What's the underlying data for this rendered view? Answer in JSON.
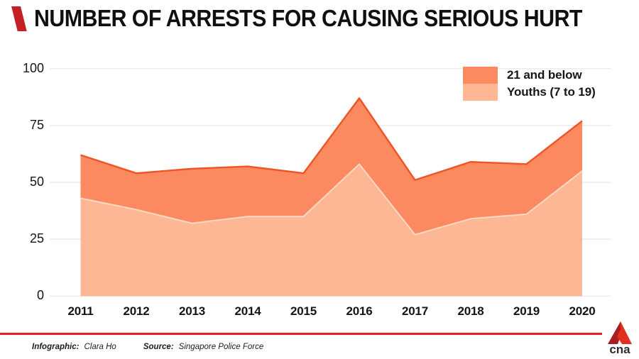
{
  "header": {
    "title": "NUMBER OF ARRESTS FOR CAUSING SERIOUS HURT"
  },
  "chart_data": {
    "type": "area",
    "title": "NUMBER OF ARRESTS FOR CAUSING SERIOUS HURT",
    "categories": [
      "2011",
      "2012",
      "2013",
      "2014",
      "2015",
      "2016",
      "2017",
      "2018",
      "2019",
      "2020"
    ],
    "series": [
      {
        "name": "21 and below",
        "values": [
          62,
          54,
          56,
          57,
          54,
          87,
          51,
          59,
          58,
          77
        ],
        "fill": "#fb8a61",
        "stroke": "#ef5423"
      },
      {
        "name": "Youths (7 to 19)",
        "values": [
          43,
          38,
          32,
          35,
          35,
          58,
          27,
          34,
          36,
          55
        ],
        "fill": "#fdb795",
        "stroke": "#fed8c2"
      }
    ],
    "xlabel": "",
    "ylabel": "",
    "ylim": [
      0,
      100
    ],
    "yticks": [
      0,
      25,
      50,
      75,
      100
    ],
    "grid": true,
    "legend_position": "top-right"
  },
  "footer": {
    "credit_label": "Infographic:",
    "credit_value": "Clara Ho",
    "source_label": "Source:",
    "source_value": "Singapore Police Force",
    "logo_text": "cna"
  },
  "colors": {
    "accent_red": "#ed1c24",
    "slash_red": "#c42127",
    "grid": "#ececec",
    "logo_dark_red": "#a81e22",
    "logo_bright_red": "#e0301e"
  }
}
